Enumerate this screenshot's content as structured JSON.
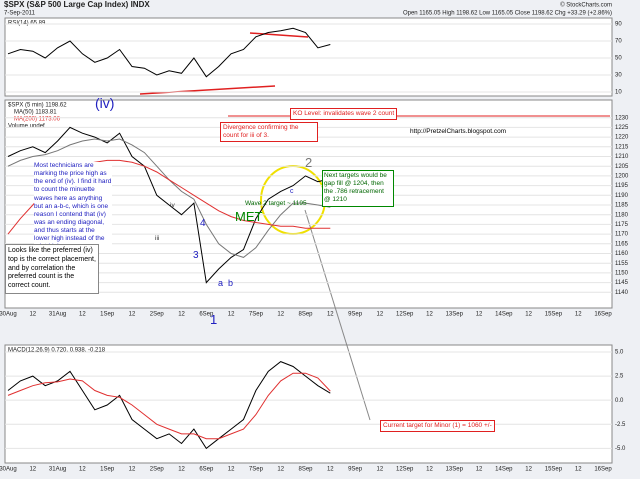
{
  "header": {
    "title": "$SPX (S&P 500 Large Cap Index) INDX",
    "date": "7-Sep-2011",
    "quote": "Open 1165.05 High 1198.62 Low 1165.05 Close 1198.62 Chg +33.29 (+2.86%)",
    "credit": "© StockCharts.com"
  },
  "legend": {
    "price": "$SPX (5 min) 1198.62",
    "ma50": "MA(50) 1183.81",
    "ma200": "MA(200) 1173.06",
    "volume": "Volume undef",
    "rsi": "RSI(14) 65.89",
    "macd": "MACD(12,26,9) 0.720, 0.938, -0.218"
  },
  "annotations": {
    "iv": "(iv)",
    "divergence": "Divergence confirming the count for iii of 3.",
    "ko": "KO Level: invalidates wave 2 count",
    "url": "http://PretzelCharts.blogspot.com",
    "targets": "Next targets would be gap fill @ 1204, then the .786 retracement @ 1210",
    "wave2": "Wave 2 target ~ 1195",
    "met": "MET",
    "technicians": "Most technicians are marking the price high as the end of (iv). I find it hard to count the minuette waves here as anything but an a-b-c, which is one reason I contend that (iv) was an ending diagonal, and thus starts at the lower high instead of the print high.",
    "looks": "Looks like the preferred (iv) top is the correct placement, and by correlation the preferred count is the correct count.",
    "minor": "Current target for Minor (1) = 1060 +/-",
    "w2": "2",
    "w1": "1",
    "wa": "a",
    "wb": "b",
    "wc": "c",
    "w3": "3",
    "w4": "4",
    "wiii": "iii",
    "wiv": "iv"
  },
  "chart_data": [
    {
      "type": "line",
      "ylim": [
        10,
        90
      ],
      "yticks": [
        10,
        30,
        50,
        70,
        90
      ],
      "color": "#000000",
      "values": [
        55,
        60,
        58,
        50,
        62,
        70,
        55,
        45,
        50,
        60,
        40,
        38,
        30,
        35,
        32,
        50,
        28,
        40,
        55,
        60,
        75,
        80,
        82,
        85,
        80,
        62,
        65.89,
        null,
        null,
        null,
        null,
        null,
        null,
        null,
        null,
        null,
        null,
        null,
        null,
        null,
        null,
        null,
        null,
        null,
        null,
        null,
        null,
        null,
        null
      ]
    },
    {
      "type": "line",
      "ylim": [
        1135,
        1235
      ],
      "yticks": [
        1140,
        1145,
        1150,
        1155,
        1160,
        1165,
        1170,
        1175,
        1180,
        1185,
        1190,
        1195,
        1200,
        1205,
        1210,
        1215,
        1220,
        1225,
        1230
      ],
      "grid": true,
      "categories": [
        "30Aug",
        null,
        "12",
        null,
        "31Aug",
        null,
        "12",
        null,
        "1Sep",
        null,
        "12",
        null,
        "2Sep",
        null,
        "12",
        null,
        "6Sep",
        null,
        "12",
        null,
        "7Sep",
        null,
        "12",
        null,
        "8Sep",
        null,
        "12",
        null,
        "9Sep",
        null,
        "12",
        null,
        "12Sep",
        null,
        "12",
        null,
        "13Sep",
        null,
        "12",
        null,
        "14Sep",
        null,
        "12",
        null,
        "15Sep",
        null,
        "12",
        null,
        "16Sep"
      ],
      "series": [
        {
          "name": "$SPX",
          "color": "#000000",
          "values": [
            1210,
            1213,
            1215,
            1212,
            1218,
            1225,
            1222,
            1220,
            1217,
            1222,
            1210,
            1205,
            1190,
            1185,
            1180,
            1186,
            1145,
            1152,
            1158,
            1162,
            1178,
            1188,
            1192,
            1195,
            1200,
            1197,
            1198.62,
            null,
            null,
            null,
            null,
            null,
            null,
            null,
            null,
            null,
            null,
            null,
            null,
            null,
            null,
            null,
            null,
            null,
            null,
            null,
            null,
            null,
            null
          ]
        },
        {
          "name": "MA(50)",
          "color": "#777777",
          "values": [
            1205,
            1208,
            1210,
            1211,
            1213,
            1216,
            1218,
            1219,
            1218,
            1219,
            1216,
            1212,
            1205,
            1198,
            1192,
            1188,
            1175,
            1165,
            1160,
            1158,
            1163,
            1172,
            1180,
            1186,
            1186,
            1185,
            1183.81,
            null,
            null,
            null,
            null,
            null,
            null,
            null,
            null,
            null,
            null,
            null,
            null,
            null,
            null,
            null,
            null,
            null,
            null,
            null,
            null,
            null,
            null
          ]
        },
        {
          "name": "MA(200)",
          "color": "#e03030",
          "values": [
            1170,
            1178,
            1185,
            1192,
            1198,
            1203,
            1206,
            1207,
            1208,
            1208,
            1207,
            1205,
            1202,
            1198,
            1194,
            1190,
            1186,
            1182,
            1179,
            1177,
            1176,
            1175,
            1174,
            1174,
            1173,
            1173,
            1173.06,
            null,
            null,
            null,
            null,
            null,
            null,
            null,
            null,
            null,
            null,
            null,
            null,
            null,
            null,
            null,
            null,
            null,
            null,
            null,
            null,
            null,
            null
          ]
        }
      ]
    },
    {
      "type": "line",
      "ylim": [
        -6,
        5
      ],
      "yticks": [
        {
          "value": 5,
          "label": "5.0"
        },
        {
          "value": 2.5,
          "label": "2.5"
        },
        {
          "value": 0,
          "label": "0.0"
        },
        {
          "value": -2.5,
          "label": "-2.5"
        },
        {
          "value": -5,
          "label": "-5.0"
        }
      ],
      "series": [
        {
          "name": "MACD",
          "color": "#000000",
          "values": [
            1,
            2,
            2.5,
            1.5,
            2,
            3,
            1,
            -1,
            -0.5,
            0.5,
            -2,
            -3,
            -4,
            -3.5,
            -4.5,
            -3,
            -5,
            -4,
            -3,
            -2,
            1,
            3,
            4,
            3.5,
            2.5,
            1.5,
            0.72,
            null,
            null,
            null,
            null,
            null,
            null,
            null,
            null,
            null,
            null,
            null,
            null,
            null,
            null,
            null,
            null,
            null,
            null,
            null,
            null,
            null,
            null
          ]
        },
        {
          "name": "Signal",
          "color": "#e03030",
          "values": [
            0.5,
            1,
            1.5,
            1.8,
            1.9,
            2.2,
            2,
            1,
            0.5,
            0.3,
            -0.5,
            -1.5,
            -2.5,
            -3,
            -3.5,
            -3.5,
            -4,
            -4,
            -3.5,
            -3,
            -1.5,
            0.5,
            2,
            2.8,
            2.8,
            2.3,
            0.938,
            null,
            null,
            null,
            null,
            null,
            null,
            null,
            null,
            null,
            null,
            null,
            null,
            null,
            null,
            null,
            null,
            null,
            null,
            null,
            null,
            null,
            null
          ]
        }
      ]
    }
  ]
}
